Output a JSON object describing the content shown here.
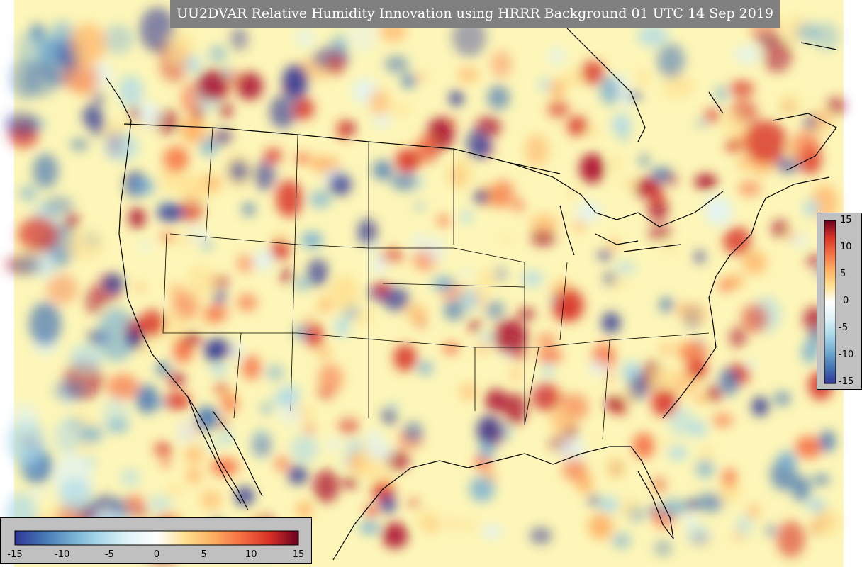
{
  "title": "UU2DVAR Relative Humidity Innovation using HRRR Background 01 UTC 14 Sep 2019",
  "colorbar": {
    "min": -15,
    "max": 15,
    "tick_labels": [
      "15",
      "10",
      "5",
      "0",
      "-5",
      "-10",
      "-15"
    ],
    "tick_labels_horizontal": [
      "-15",
      "-10",
      "-5",
      "0",
      "5",
      "10",
      "15"
    ],
    "colors": [
      "#313695",
      "#4575b4",
      "#74add1",
      "#abd9e9",
      "#e0f3f8",
      "#ffffbf",
      "#fee090",
      "#fdae61",
      "#f46d43",
      "#d73027",
      "#a50026"
    ]
  },
  "map": {
    "background_color": "#fdf6b8",
    "coast_color": "#000000"
  }
}
